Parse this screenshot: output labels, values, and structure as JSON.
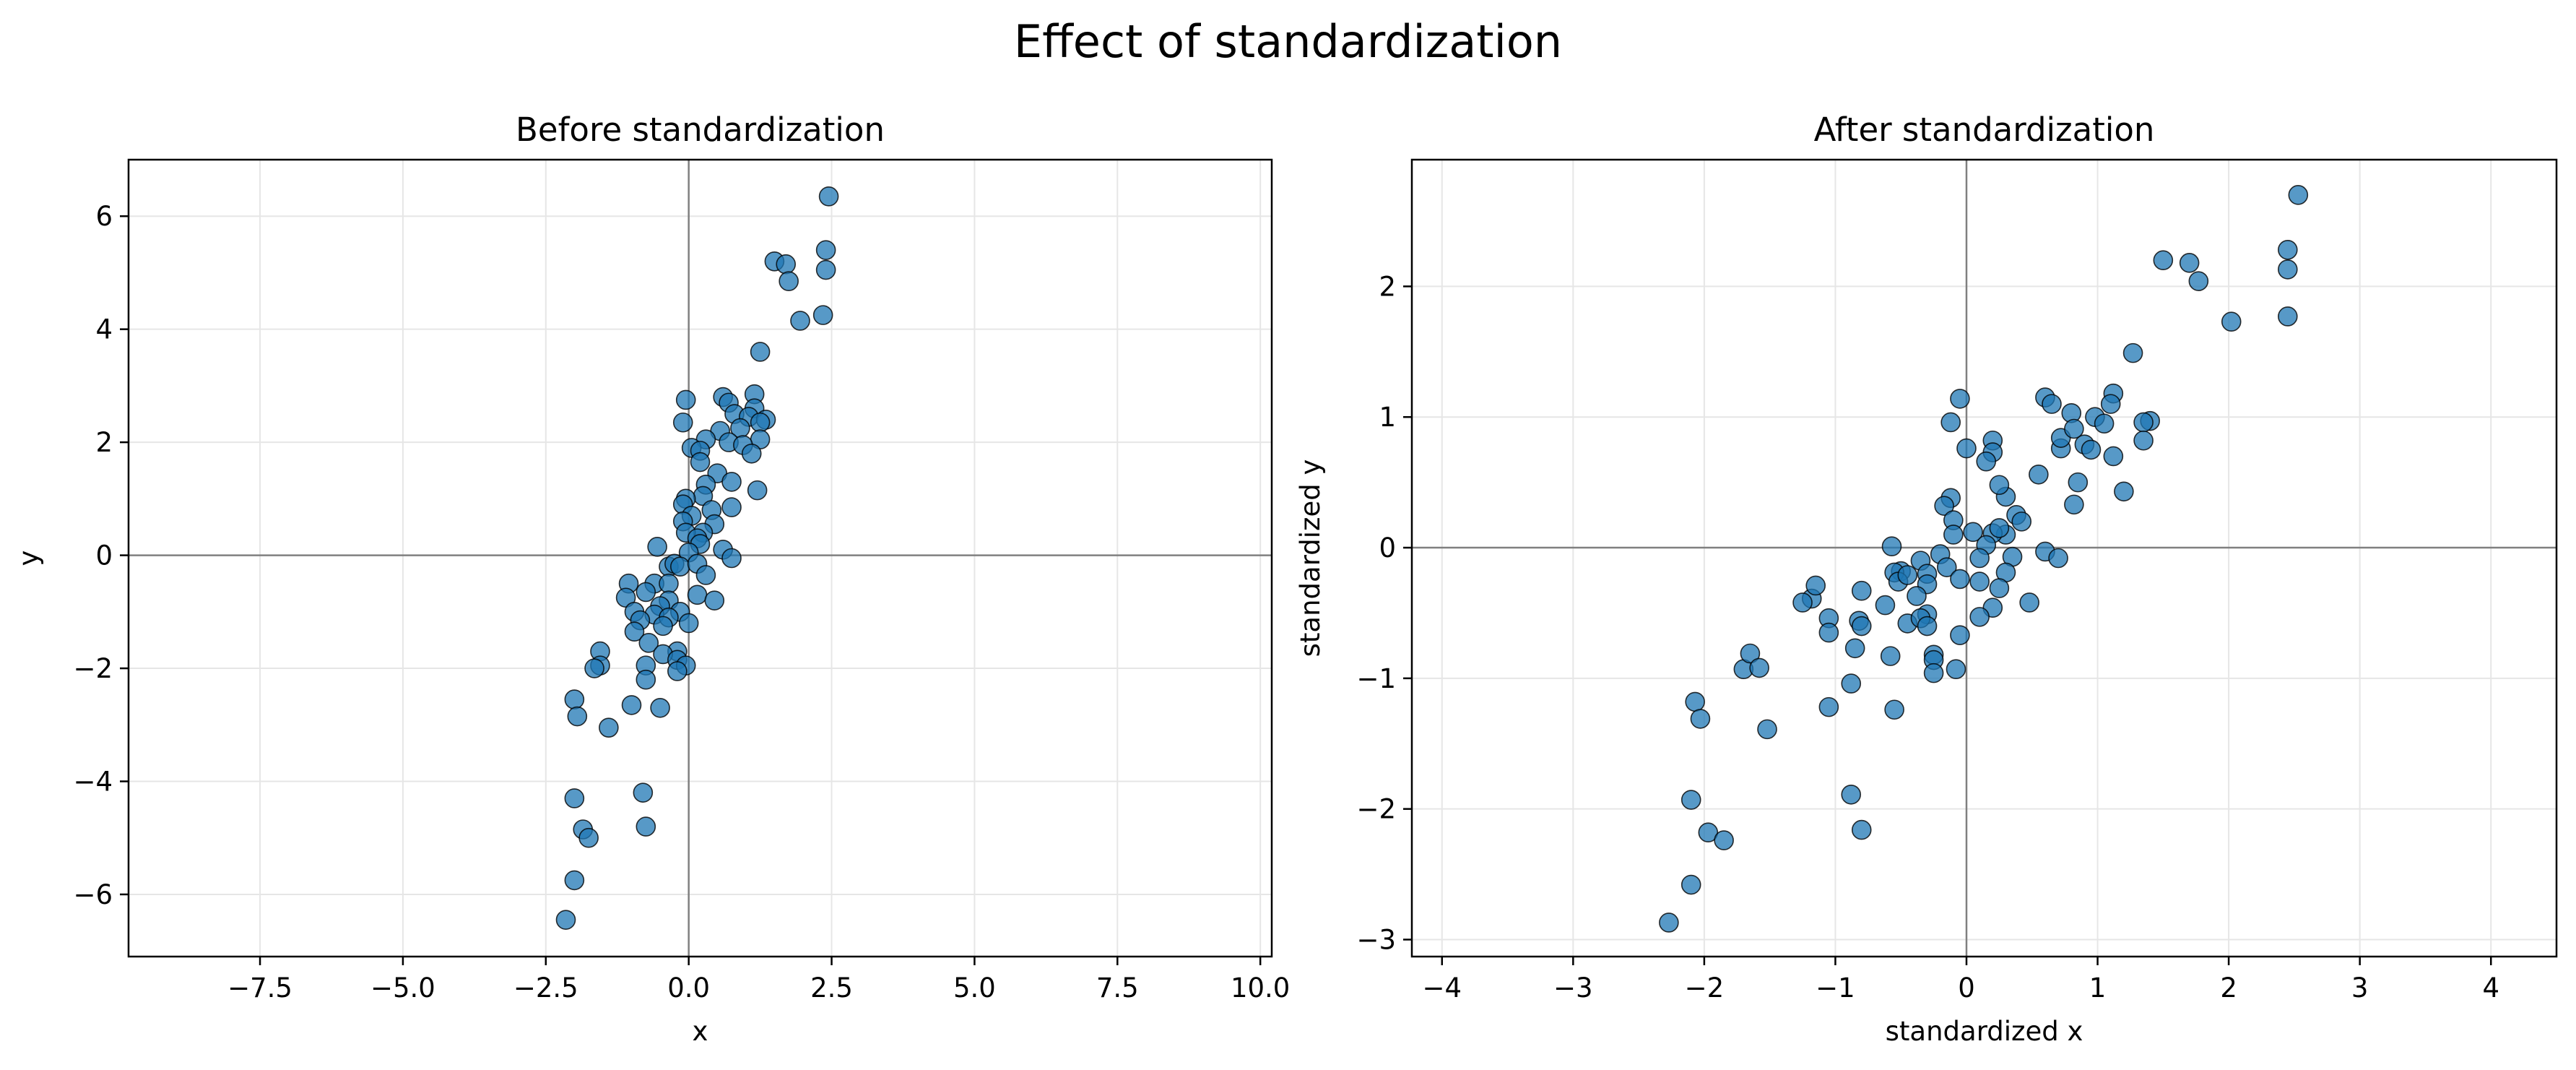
{
  "figure": {
    "suptitle": "Effect of standardization"
  },
  "colors": {
    "marker_fill": "#1f77b4",
    "marker_edge": "#000000",
    "zero_line": "#808080",
    "grid": "#e6e6e6"
  },
  "chart_data": [
    {
      "type": "scatter",
      "title": "Before standardization",
      "xlabel": "x",
      "ylabel": "y",
      "xlim": [
        -9.8,
        10.2
      ],
      "ylim": [
        -7.1,
        7.0
      ],
      "xticks": [
        -7.5,
        -5.0,
        -2.5,
        0.0,
        2.5,
        5.0,
        7.5,
        10.0
      ],
      "xtick_labels": [
        "−7.5",
        "−5.0",
        "−2.5",
        "0.0",
        "2.5",
        "5.0",
        "7.5",
        "10.0"
      ],
      "yticks": [
        -6,
        -4,
        -2,
        0,
        2,
        4,
        6
      ],
      "ytick_labels": [
        "−6",
        "−4",
        "−2",
        "0",
        "2",
        "4",
        "6"
      ],
      "grid": true,
      "zero_lines": true,
      "points": [
        [
          2.45,
          6.35
        ],
        [
          2.4,
          5.4
        ],
        [
          2.4,
          5.05
        ],
        [
          1.5,
          5.2
        ],
        [
          1.7,
          5.15
        ],
        [
          1.75,
          4.85
        ],
        [
          2.35,
          4.25
        ],
        [
          1.95,
          4.15
        ],
        [
          1.25,
          3.6
        ],
        [
          1.15,
          2.85
        ],
        [
          0.6,
          2.8
        ],
        [
          0.7,
          2.7
        ],
        [
          -0.05,
          2.75
        ],
        [
          1.15,
          2.6
        ],
        [
          0.8,
          2.5
        ],
        [
          1.05,
          2.45
        ],
        [
          1.35,
          2.4
        ],
        [
          1.25,
          2.35
        ],
        [
          -0.1,
          2.35
        ],
        [
          0.9,
          2.25
        ],
        [
          0.55,
          2.2
        ],
        [
          0.3,
          2.05
        ],
        [
          1.25,
          2.05
        ],
        [
          0.7,
          2.0
        ],
        [
          0.95,
          1.95
        ],
        [
          0.05,
          1.9
        ],
        [
          0.2,
          1.85
        ],
        [
          1.1,
          1.8
        ],
        [
          0.2,
          1.65
        ],
        [
          0.5,
          1.45
        ],
        [
          0.75,
          1.3
        ],
        [
          0.3,
          1.25
        ],
        [
          1.2,
          1.15
        ],
        [
          0.25,
          1.05
        ],
        [
          -0.05,
          1.0
        ],
        [
          0.75,
          0.85
        ],
        [
          -0.1,
          0.9
        ],
        [
          0.4,
          0.8
        ],
        [
          0.05,
          0.7
        ],
        [
          -0.1,
          0.6
        ],
        [
          0.45,
          0.55
        ],
        [
          0.25,
          0.4
        ],
        [
          -0.05,
          0.4
        ],
        [
          0.15,
          0.3
        ],
        [
          0.6,
          0.1
        ],
        [
          0.75,
          -0.05
        ],
        [
          0.2,
          0.2
        ],
        [
          -0.55,
          0.15
        ],
        [
          0.0,
          0.05
        ],
        [
          -0.35,
          -0.2
        ],
        [
          -0.25,
          -0.15
        ],
        [
          -0.15,
          -0.2
        ],
        [
          0.15,
          -0.15
        ],
        [
          0.3,
          -0.35
        ],
        [
          -1.05,
          -0.5
        ],
        [
          -0.6,
          -0.5
        ],
        [
          -0.35,
          -0.5
        ],
        [
          -0.75,
          -0.65
        ],
        [
          -1.1,
          -0.75
        ],
        [
          0.15,
          -0.7
        ],
        [
          0.45,
          -0.8
        ],
        [
          -0.35,
          -0.8
        ],
        [
          -0.5,
          -0.9
        ],
        [
          -0.95,
          -1.0
        ],
        [
          -0.15,
          -1.0
        ],
        [
          -0.6,
          -1.05
        ],
        [
          -0.85,
          -1.15
        ],
        [
          -0.35,
          -1.1
        ],
        [
          0.0,
          -1.2
        ],
        [
          -0.45,
          -1.25
        ],
        [
          -0.95,
          -1.35
        ],
        [
          -0.7,
          -1.55
        ],
        [
          -0.2,
          -1.7
        ],
        [
          -0.45,
          -1.75
        ],
        [
          -0.2,
          -1.85
        ],
        [
          -1.55,
          -1.7
        ],
        [
          -1.55,
          -1.95
        ],
        [
          -1.65,
          -2.0
        ],
        [
          -0.75,
          -1.95
        ],
        [
          -0.05,
          -1.95
        ],
        [
          -0.2,
          -2.05
        ],
        [
          -0.75,
          -2.2
        ],
        [
          -1.0,
          -2.65
        ],
        [
          -0.5,
          -2.7
        ],
        [
          -2.0,
          -2.55
        ],
        [
          -1.95,
          -2.85
        ],
        [
          -1.4,
          -3.05
        ],
        [
          -0.8,
          -4.2
        ],
        [
          -2.0,
          -4.3
        ],
        [
          -0.75,
          -4.8
        ],
        [
          -1.85,
          -4.85
        ],
        [
          -1.75,
          -5.0
        ],
        [
          -2.0,
          -5.75
        ],
        [
          -2.15,
          -6.45
        ]
      ]
    },
    {
      "type": "scatter",
      "title": "After standardization",
      "xlabel": "standardized x",
      "ylabel": "standardized y",
      "xlim": [
        -4.23,
        4.5
      ],
      "ylim": [
        -3.13,
        2.97
      ],
      "xticks": [
        -4,
        -3,
        -2,
        -1,
        0,
        1,
        2,
        3,
        4
      ],
      "xtick_labels": [
        "−4",
        "−3",
        "−2",
        "−1",
        "0",
        "1",
        "2",
        "3",
        "4"
      ],
      "yticks": [
        -3,
        -2,
        -1,
        0,
        1,
        2
      ],
      "ytick_labels": [
        "−3",
        "−2",
        "−1",
        "0",
        "1",
        "2"
      ],
      "grid": true,
      "zero_lines": true,
      "points": [
        [
          2.53,
          2.7
        ],
        [
          2.45,
          2.28
        ],
        [
          2.45,
          2.13
        ],
        [
          1.5,
          2.2
        ],
        [
          1.7,
          2.18
        ],
        [
          1.77,
          2.04
        ],
        [
          2.45,
          1.77
        ],
        [
          2.02,
          1.73
        ],
        [
          1.27,
          1.49
        ],
        [
          1.12,
          1.18
        ],
        [
          0.6,
          1.15
        ],
        [
          0.65,
          1.1
        ],
        [
          -0.05,
          1.14
        ],
        [
          1.1,
          1.1
        ],
        [
          0.8,
          1.03
        ],
        [
          0.98,
          1.0
        ],
        [
          1.4,
          0.97
        ],
        [
          1.35,
          0.96
        ],
        [
          -0.12,
          0.96
        ],
        [
          0.9,
          0.79
        ],
        [
          1.05,
          0.95
        ],
        [
          0.2,
          0.82
        ],
        [
          1.35,
          0.82
        ],
        [
          0.72,
          0.76
        ],
        [
          0.95,
          0.75
        ],
        [
          0.0,
          0.76
        ],
        [
          0.2,
          0.73
        ],
        [
          1.12,
          0.7
        ],
        [
          0.15,
          0.66
        ],
        [
          0.72,
          0.84
        ],
        [
          0.82,
          0.91
        ],
        [
          0.55,
          0.56
        ],
        [
          1.2,
          0.43
        ],
        [
          0.85,
          0.5
        ],
        [
          -0.12,
          0.38
        ],
        [
          0.82,
          0.33
        ],
        [
          -0.17,
          0.32
        ],
        [
          0.3,
          0.39
        ],
        [
          0.25,
          0.48
        ],
        [
          -0.1,
          0.21
        ],
        [
          0.38,
          0.25
        ],
        [
          0.42,
          0.2
        ],
        [
          0.3,
          0.1
        ],
        [
          0.6,
          -0.03
        ],
        [
          0.7,
          -0.08
        ],
        [
          0.2,
          0.11
        ],
        [
          -0.57,
          0.01
        ],
        [
          0.05,
          0.12
        ],
        [
          0.25,
          0.15
        ],
        [
          -0.1,
          0.1
        ],
        [
          0.15,
          0.02
        ],
        [
          0.1,
          -0.08
        ],
        [
          0.35,
          -0.07
        ],
        [
          -0.5,
          -0.18
        ],
        [
          -0.2,
          -0.05
        ],
        [
          -0.35,
          -0.1
        ],
        [
          -0.3,
          -0.2
        ],
        [
          -0.15,
          -0.15
        ],
        [
          -1.18,
          -0.39
        ],
        [
          -1.15,
          -0.29
        ],
        [
          -1.25,
          -0.42
        ],
        [
          -0.8,
          -0.33
        ],
        [
          -0.55,
          -0.19
        ],
        [
          -0.52,
          -0.26
        ],
        [
          -0.45,
          -0.21
        ],
        [
          -0.3,
          -0.28
        ],
        [
          -0.05,
          -0.24
        ],
        [
          0.1,
          -0.26
        ],
        [
          0.3,
          -0.19
        ],
        [
          0.25,
          -0.31
        ],
        [
          -1.05,
          -0.54
        ],
        [
          -0.82,
          -0.56
        ],
        [
          -0.62,
          -0.44
        ],
        [
          -0.38,
          -0.37
        ],
        [
          -0.3,
          -0.51
        ],
        [
          0.2,
          -0.46
        ],
        [
          0.48,
          -0.42
        ],
        [
          -0.45,
          -0.58
        ],
        [
          -0.35,
          -0.54
        ],
        [
          -0.8,
          -0.6
        ],
        [
          -1.05,
          -0.65
        ],
        [
          -0.3,
          -0.6
        ],
        [
          0.1,
          -0.53
        ],
        [
          -0.05,
          -0.67
        ],
        [
          -0.25,
          -0.82
        ],
        [
          -0.85,
          -0.77
        ],
        [
          -0.58,
          -0.83
        ],
        [
          -0.25,
          -0.86
        ],
        [
          -1.7,
          -0.93
        ],
        [
          -1.65,
          -0.81
        ],
        [
          -1.58,
          -0.92
        ],
        [
          -0.08,
          -0.93
        ],
        [
          -0.25,
          -0.96
        ],
        [
          -0.88,
          -1.04
        ],
        [
          -1.05,
          -1.22
        ],
        [
          -0.55,
          -1.24
        ],
        [
          -1.52,
          -1.39
        ],
        [
          -2.07,
          -1.18
        ],
        [
          -2.03,
          -1.31
        ],
        [
          -0.88,
          -1.89
        ],
        [
          -2.1,
          -1.93
        ],
        [
          -0.8,
          -2.16
        ],
        [
          -1.97,
          -2.18
        ],
        [
          -1.85,
          -2.24
        ],
        [
          -2.1,
          -2.58
        ],
        [
          -2.27,
          -2.87
        ]
      ]
    }
  ]
}
